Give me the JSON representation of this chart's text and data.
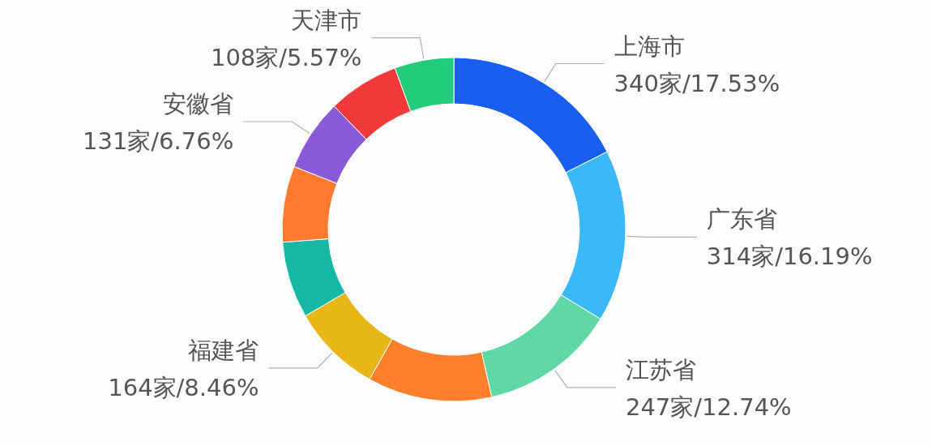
{
  "chart_data": {
    "type": "donut",
    "categories": [
      "上海市",
      "广东省",
      "江苏省",
      null,
      "福建省",
      null,
      null,
      "安徽省",
      null,
      "天津市"
    ],
    "values": [
      17.53,
      16.19,
      12.74,
      11.7,
      8.46,
      7.2,
      7.15,
      6.76,
      6.7,
      5.57
    ],
    "value_labels": [
      "340家/17.53%",
      "314家/16.19%",
      "247家/12.74%",
      null,
      "164家/8.46%",
      null,
      null,
      "131家/6.76%",
      null,
      "108家/5.57%"
    ],
    "colors": [
      "#1a5ef0",
      "#3bb8f5",
      "#5fd8a6",
      "#ff7f2a",
      "#e8b617",
      "#17b8a6",
      "#ff7a2e",
      "#8a5ad8",
      "#f03a3a",
      "#22cc7a"
    ]
  }
}
